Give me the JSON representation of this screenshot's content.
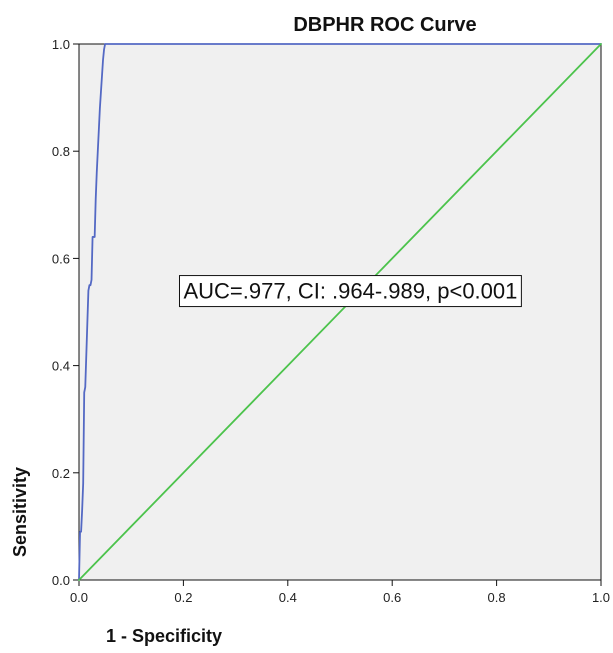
{
  "chart_data": {
    "type": "line",
    "title": "DBPHR ROC Curve",
    "xlabel": "1 - Specificity",
    "ylabel": "Sensitivity",
    "xlim": [
      0.0,
      1.0
    ],
    "ylim": [
      0.0,
      1.0
    ],
    "x_ticks": [
      "0.0",
      "0.2",
      "0.4",
      "0.6",
      "0.8",
      "1.0"
    ],
    "y_ticks": [
      "0.0",
      "0.2",
      "0.4",
      "0.6",
      "0.8",
      "1.0"
    ],
    "grid": false,
    "series": [
      {
        "x": [
          0.0,
          0.002,
          0.004,
          0.006,
          0.008,
          0.01,
          0.012,
          0.014,
          0.016,
          0.018,
          0.02,
          0.022,
          0.024,
          0.026,
          0.028,
          0.03,
          0.032,
          0.034,
          0.036,
          0.038,
          0.04,
          0.042,
          0.044,
          0.046,
          0.048,
          0.05,
          0.052,
          0.06,
          0.1,
          0.2,
          0.4,
          0.6,
          0.8,
          1.0
        ],
        "y": [
          0.0,
          0.09,
          0.09,
          0.13,
          0.18,
          0.35,
          0.36,
          0.42,
          0.48,
          0.54,
          0.55,
          0.55,
          0.56,
          0.64,
          0.64,
          0.64,
          0.71,
          0.76,
          0.8,
          0.84,
          0.88,
          0.91,
          0.94,
          0.97,
          0.99,
          1.0,
          1.0,
          1.0,
          1.0,
          1.0,
          1.0,
          1.0,
          1.0,
          1.0
        ],
        "color": "#5469c4"
      },
      {
        "x": [
          0.0,
          1.0
        ],
        "y": [
          0.0,
          1.0
        ],
        "color": "#4cc34c"
      }
    ],
    "annotations": [
      {
        "text": "AUC=.977, CI: .964-.989, p<0.001",
        "x": 0.52,
        "y": 0.54
      }
    ]
  },
  "colors": {
    "plot_background": "#f0f0f0",
    "axis": "#111111",
    "roc_curve": "#5469c4",
    "reference_line": "#4cc34c"
  }
}
